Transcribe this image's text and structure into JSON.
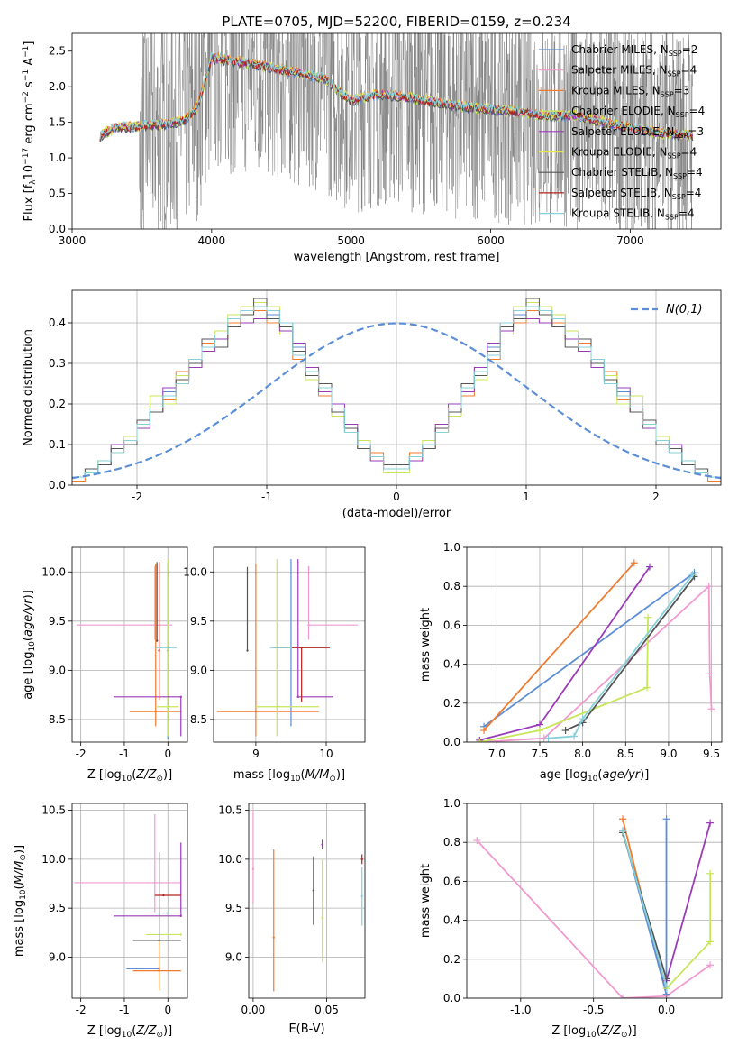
{
  "figure": {
    "title": "PLATE=0705, MJD=52200, FIBERID=0159, z=0.234"
  },
  "series_styles": [
    {
      "name": "Chabrier MILES",
      "nssp": "2",
      "color": "#5b8ed6"
    },
    {
      "name": "Salpeter MILES",
      "nssp": "4",
      "color": "#f19ad0"
    },
    {
      "name": "Kroupa MILES",
      "nssp": "3",
      "color": "#f07b2e"
    },
    {
      "name": "Chabrier ELODIE",
      "nssp": "4",
      "color": "#c8e65a"
    },
    {
      "name": "Salpeter ELODIE",
      "nssp": "3",
      "color": "#9a3bb8"
    },
    {
      "name": "Kroupa ELODIE",
      "nssp": "4",
      "color": "#e6e64a"
    },
    {
      "name": "Chabrier STELIB",
      "nssp": "4",
      "color": "#555555"
    },
    {
      "name": "Salpeter STELIB",
      "nssp": "4",
      "color": "#b5231e"
    },
    {
      "name": "Kroupa STELIB",
      "nssp": "4",
      "color": "#86d1d8"
    }
  ],
  "chart_data": [
    {
      "id": "spectrum",
      "type": "line",
      "title": "PLATE=0705, MJD=52200, FIBERID=0159, z=0.234",
      "xlabel": "wavelength [Angstrom, rest frame]",
      "ylabel": "Flux [f_λ 10^-17 erg cm^-2 s^-1 A^-1]",
      "xlim": [
        3000,
        7650
      ],
      "ylim": [
        0,
        2.75
      ],
      "xticks": [
        3000,
        4000,
        5000,
        6000,
        7000
      ],
      "yticks": [
        0.0,
        0.5,
        1.0,
        1.5,
        2.0,
        2.5
      ],
      "legend_position": "right",
      "data_color": "#808080",
      "data_x_range": [
        3200,
        7450
      ],
      "model_shape": {
        "x": [
          3200,
          3300,
          3500,
          3700,
          3800,
          3900,
          4000,
          4100,
          4200,
          4400,
          4600,
          4800,
          5000,
          5200,
          5400,
          5600,
          5800,
          6000,
          6200,
          6400,
          6600,
          6800,
          7000,
          7200,
          7400
        ],
        "y": [
          1.3,
          1.42,
          1.45,
          1.48,
          1.52,
          1.72,
          2.4,
          2.38,
          2.35,
          2.28,
          2.2,
          2.12,
          1.8,
          1.9,
          1.85,
          1.78,
          1.72,
          1.68,
          1.65,
          1.58,
          1.6,
          1.5,
          1.42,
          1.35,
          1.32
        ]
      }
    },
    {
      "id": "residuals",
      "type": "step",
      "xlabel": "(data-model)/error",
      "ylabel": "Normed distribution",
      "xlim": [
        -2.5,
        2.5
      ],
      "ylim": [
        0,
        0.48
      ],
      "xticks": [
        -2,
        -1,
        0,
        1,
        2
      ],
      "yticks": [
        0.0,
        0.1,
        0.2,
        0.3,
        0.4
      ],
      "legend": "N(0,1)",
      "legend_position": "top-right",
      "reference_curve": "standard normal",
      "bin_width": 0.1,
      "series": [
        {
          "name": "Chabrier MILES",
          "values": [
            0.02,
            0.04,
            0.05,
            0.09,
            0.11,
            0.15,
            0.19,
            0.23,
            0.26,
            0.3,
            0.34,
            0.37,
            0.4,
            0.43,
            0.44,
            0.42,
            0.4,
            0.34,
            0.28,
            0.24,
            0.19,
            0.14,
            0.1,
            0.07,
            0.05
          ]
        },
        {
          "name": "Kroupa MILES",
          "values": [
            0.01,
            0.03,
            0.06,
            0.08,
            0.1,
            0.16,
            0.18,
            0.21,
            0.28,
            0.31,
            0.35,
            0.36,
            0.4,
            0.42,
            0.43,
            0.4,
            0.39,
            0.31,
            0.29,
            0.22,
            0.18,
            0.13,
            0.09,
            0.08,
            0.04
          ]
        },
        {
          "name": "Chabrier ELODIE",
          "values": [
            0.02,
            0.04,
            0.06,
            0.09,
            0.12,
            0.14,
            0.22,
            0.2,
            0.27,
            0.31,
            0.36,
            0.38,
            0.42,
            0.44,
            0.45,
            0.44,
            0.37,
            0.33,
            0.26,
            0.23,
            0.17,
            0.13,
            0.11,
            0.06,
            0.03
          ]
        },
        {
          "name": "Salpeter ELODIE",
          "values": [
            0.02,
            0.03,
            0.05,
            0.1,
            0.11,
            0.14,
            0.18,
            0.24,
            0.26,
            0.29,
            0.33,
            0.36,
            0.39,
            0.4,
            0.41,
            0.43,
            0.38,
            0.35,
            0.29,
            0.23,
            0.2,
            0.15,
            0.1,
            0.06,
            0.04
          ]
        },
        {
          "name": "Chabrier STELIB",
          "values": [
            0.02,
            0.04,
            0.05,
            0.09,
            0.1,
            0.16,
            0.18,
            0.22,
            0.26,
            0.3,
            0.36,
            0.34,
            0.39,
            0.42,
            0.46,
            0.41,
            0.39,
            0.33,
            0.27,
            0.25,
            0.18,
            0.14,
            0.09,
            0.07,
            0.05
          ]
        },
        {
          "name": "Kroupa STELIB",
          "values": [
            0.02,
            0.03,
            0.06,
            0.08,
            0.11,
            0.15,
            0.19,
            0.22,
            0.25,
            0.31,
            0.34,
            0.37,
            0.41,
            0.43,
            0.44,
            0.43,
            0.4,
            0.32,
            0.28,
            0.24,
            0.19,
            0.13,
            0.1,
            0.07,
            0.04
          ]
        }
      ]
    },
    {
      "id": "age-vs-Z",
      "type": "errorbar",
      "xlabel": "Z [log10(Z/Z⊙)]",
      "ylabel": "age  [log10(age/yr)]",
      "xlim": [
        -2.2,
        0.45
      ],
      "ylim": [
        8.27,
        10.25
      ],
      "xticks": [
        -2,
        -1,
        0
      ],
      "yticks": [
        8.5,
        9.0,
        9.5,
        10.0
      ],
      "points": [
        {
          "series": "Chabrier MILES",
          "x": 0.0,
          "y": 9.2,
          "xerr": [
            0.0,
            0.0
          ],
          "yerr": [
            0.9,
            0.9
          ]
        },
        {
          "series": "Salpeter MILES",
          "x": -0.3,
          "y": 9.46,
          "xerr": [
            1.8,
            0.4
          ],
          "yerr": [
            0.15,
            0.6
          ]
        },
        {
          "series": "Kroupa MILES",
          "x": -0.28,
          "y": 8.58,
          "xerr": [
            0.6,
            0.6
          ],
          "yerr": [
            0.15,
            1.5
          ]
        },
        {
          "series": "Chabrier ELODIE",
          "x": 0.0,
          "y": 8.63,
          "xerr": [
            0.25,
            0.25
          ],
          "yerr": [
            0.3,
            1.5
          ]
        },
        {
          "series": "Salpeter ELODIE",
          "x": 0.3,
          "y": 8.73,
          "xerr": [
            1.55,
            0.0
          ],
          "yerr": [
            0.4,
            0.0
          ]
        },
        {
          "series": "Chabrier STELIB",
          "x": -0.25,
          "y": 9.3,
          "xerr": [
            0.0,
            0.0
          ],
          "yerr": [
            0.0,
            0.8
          ]
        },
        {
          "series": "Salpeter STELIB",
          "x": -0.2,
          "y": 9.2,
          "xerr": [
            0.0,
            0.0
          ],
          "yerr": [
            0.5,
            0.9
          ]
        },
        {
          "series": "Kroupa STELIB",
          "x": 0.0,
          "y": 9.23,
          "xerr": [
            0.3,
            0.2
          ],
          "yerr": [
            0.0,
            0.0
          ]
        }
      ]
    },
    {
      "id": "age-vs-mass",
      "type": "errorbar",
      "xlabel": "mass [log10(M/M⊙)]",
      "ylabel": "",
      "xlim": [
        8.4,
        10.55
      ],
      "ylim": [
        8.27,
        10.25
      ],
      "xticks": [
        9,
        10
      ],
      "yticks": [
        8.5,
        9.0,
        9.5,
        10.0
      ],
      "points": [
        {
          "series": "Chabrier MILES",
          "x": 9.5,
          "y": 9.23,
          "xerr": [
            0.0,
            0.0
          ],
          "yerr": [
            0.8,
            0.9
          ]
        },
        {
          "series": "Salpeter MILES",
          "x": 9.75,
          "y": 9.46,
          "xerr": [
            0.0,
            0.7
          ],
          "yerr": [
            0.15,
            0.6
          ]
        },
        {
          "series": "Kroupa MILES",
          "x": 9.0,
          "y": 8.58,
          "xerr": [
            0.55,
            0.9
          ],
          "yerr": [
            0.25,
            1.5
          ]
        },
        {
          "series": "Chabrier ELODIE",
          "x": 9.3,
          "y": 8.63,
          "xerr": [
            0.3,
            0.6
          ],
          "yerr": [
            0.3,
            1.5
          ]
        },
        {
          "series": "Salpeter ELODIE",
          "x": 9.6,
          "y": 8.73,
          "xerr": [
            0.0,
            0.5
          ],
          "yerr": [
            0.0,
            1.4
          ]
        },
        {
          "series": "Chabrier STELIB",
          "x": 8.88,
          "y": 9.2,
          "xerr": [
            0.0,
            0.0
          ],
          "yerr": [
            0.0,
            0.85
          ]
        },
        {
          "series": "Salpeter STELIB",
          "x": 9.65,
          "y": 9.23,
          "xerr": [
            0.4,
            0.4
          ],
          "yerr": [
            0.55,
            0.0
          ]
        },
        {
          "series": "Kroupa STELIB",
          "x": 9.5,
          "y": 9.23,
          "xerr": [
            0.3,
            0.0
          ],
          "yerr": [
            0.0,
            0.0
          ]
        }
      ]
    },
    {
      "id": "mass-weight-vs-age",
      "type": "line",
      "xlabel": "age  [log10(age/yr)]",
      "ylabel": "mass weight",
      "xlim": [
        6.65,
        9.62
      ],
      "ylim": [
        0,
        1.0
      ],
      "xticks": [
        7.0,
        7.5,
        8.0,
        8.5,
        9.0,
        9.5
      ],
      "yticks": [
        0.0,
        0.2,
        0.4,
        0.6,
        0.8,
        1.0
      ],
      "series": [
        {
          "name": "Chabrier MILES",
          "x": [
            6.85,
            9.3
          ],
          "y": [
            0.08,
            0.87
          ]
        },
        {
          "name": "Kroupa MILES",
          "x": [
            6.85,
            8.6
          ],
          "y": [
            0.06,
            0.92
          ]
        },
        {
          "name": "Salpeter MILES",
          "x": [
            6.8,
            7.55,
            9.47,
            9.48,
            9.5
          ],
          "y": [
            0.0,
            0.02,
            0.8,
            0.35,
            0.17
          ]
        },
        {
          "name": "Salpeter ELODIE",
          "x": [
            6.8,
            7.5,
            8.78
          ],
          "y": [
            0.01,
            0.09,
            0.9
          ]
        },
        {
          "name": "Chabrier ELODIE",
          "x": [
            6.8,
            7.5,
            8.75,
            8.76
          ],
          "y": [
            0.0,
            0.06,
            0.28,
            0.64
          ]
        },
        {
          "name": "Chabrier STELIB",
          "x": [
            7.8,
            8.0,
            9.3
          ],
          "y": [
            0.06,
            0.1,
            0.85
          ]
        },
        {
          "name": "Kroupa STELIB",
          "x": [
            7.6,
            7.9,
            8.0,
            9.28
          ],
          "y": [
            0.02,
            0.03,
            0.12,
            0.86
          ]
        }
      ]
    },
    {
      "id": "mass-vs-Z",
      "type": "errorbar",
      "xlabel": "Z [log10(Z/Z⊙)]",
      "ylabel": "mass [log10(M/M⊙)]",
      "xlim": [
        -2.2,
        0.45
      ],
      "ylim": [
        8.58,
        10.57
      ],
      "xticks": [
        -2,
        -1,
        0
      ],
      "yticks": [
        9.0,
        9.5,
        10.0,
        10.5
      ],
      "points": [
        {
          "series": "Chabrier MILES",
          "x": -0.2,
          "y": 8.88,
          "xerr": [
            0.75,
            0.0
          ],
          "yerr": [
            0.0,
            0.0
          ]
        },
        {
          "series": "Salpeter MILES",
          "x": -0.3,
          "y": 9.76,
          "xerr": [
            1.85,
            0.6
          ],
          "yerr": [
            0.3,
            0.7
          ]
        },
        {
          "series": "Kroupa MILES",
          "x": -0.2,
          "y": 8.86,
          "xerr": [
            0.6,
            0.5
          ],
          "yerr": [
            0.2,
            1.2
          ]
        },
        {
          "series": "Chabrier ELODIE",
          "x": 0.3,
          "y": 9.23,
          "xerr": [
            0.8,
            0.0
          ],
          "yerr": [
            0.0,
            0.0
          ]
        },
        {
          "series": "Salpeter ELODIE",
          "x": 0.3,
          "y": 9.42,
          "xerr": [
            1.55,
            0.0
          ],
          "yerr": [
            0.0,
            0.75
          ]
        },
        {
          "series": "Chabrier STELIB",
          "x": -0.2,
          "y": 9.17,
          "xerr": [
            0.6,
            0.5
          ],
          "yerr": [
            0.0,
            0.9
          ]
        },
        {
          "series": "Salpeter STELIB",
          "x": -0.1,
          "y": 9.63,
          "xerr": [
            0.2,
            0.4
          ],
          "yerr": [
            0.0,
            0.0
          ]
        },
        {
          "series": "Kroupa STELIB",
          "x": 0.0,
          "y": 9.45,
          "xerr": [
            0.3,
            0.3
          ],
          "yerr": [
            0.0,
            0.0
          ]
        }
      ]
    },
    {
      "id": "mass-vs-ebv",
      "type": "errorbar",
      "xlabel": "E(B-V)",
      "ylabel": "",
      "xlim": [
        -0.003,
        0.076
      ],
      "ylim": [
        8.58,
        10.57
      ],
      "xticks": [
        0.0,
        0.05
      ],
      "yticks": [
        9.0,
        9.5,
        10.0,
        10.5
      ],
      "points": [
        {
          "series": "Salpeter MILES",
          "x": 0.0,
          "y": 9.9,
          "xerr": [
            0.0,
            0.0
          ],
          "yerr": [
            0.35,
            0.6
          ]
        },
        {
          "series": "Kroupa MILES",
          "x": 0.014,
          "y": 9.2,
          "xerr": [
            0.0,
            0.0
          ],
          "yerr": [
            0.55,
            0.9
          ]
        },
        {
          "series": "Chabrier STELIB",
          "x": 0.041,
          "y": 9.68,
          "xerr": [
            0.0,
            0.0
          ],
          "yerr": [
            0.35,
            0.35
          ]
        },
        {
          "series": "Chabrier ELODIE",
          "x": 0.047,
          "y": 9.4,
          "xerr": [
            0.0,
            0.0
          ],
          "yerr": [
            0.45,
            0.6
          ]
        },
        {
          "series": "Salpeter ELODIE",
          "x": 0.047,
          "y": 10.15,
          "xerr": [
            0.0,
            0.0
          ],
          "yerr": [
            0.05,
            0.05
          ]
        },
        {
          "series": "Salpeter STELIB",
          "x": 0.074,
          "y": 10.0,
          "xerr": [
            0.0,
            0.0
          ],
          "yerr": [
            0.05,
            0.05
          ]
        },
        {
          "series": "Kroupa STELIB",
          "x": 0.074,
          "y": 9.62,
          "xerr": [
            0.0,
            0.0
          ],
          "yerr": [
            0.3,
            0.3
          ]
        }
      ]
    },
    {
      "id": "mass-weight-vs-Z",
      "type": "line",
      "xlabel": "Z [log10(Z/Z⊙)]",
      "ylabel": "mass weight",
      "xlim": [
        -1.37,
        0.38
      ],
      "ylim": [
        0,
        1.0
      ],
      "xticks": [
        -1.0,
        -0.5,
        0.0
      ],
      "yticks": [
        0.0,
        0.2,
        0.4,
        0.6,
        0.8,
        1.0
      ],
      "series": [
        {
          "name": "Salpeter MILES",
          "x": [
            -1.3,
            -0.3,
            0.0,
            0.3
          ],
          "y": [
            0.81,
            0.0,
            0.01,
            0.17
          ]
        },
        {
          "name": "Kroupa MILES",
          "x": [
            -0.3,
            0.0
          ],
          "y": [
            0.92,
            0.02
          ]
        },
        {
          "name": "Chabrier MILES",
          "x": [
            -0.3,
            0.0,
            0.0
          ],
          "y": [
            0.86,
            0.02,
            0.92
          ]
        },
        {
          "name": "Salpeter ELODIE",
          "x": [
            0.0,
            0.3
          ],
          "y": [
            0.09,
            0.9
          ]
        },
        {
          "name": "Chabrier ELODIE",
          "x": [
            0.0,
            0.3,
            0.3
          ],
          "y": [
            0.05,
            0.29,
            0.64
          ]
        },
        {
          "name": "Chabrier STELIB",
          "x": [
            -0.3,
            0.0
          ],
          "y": [
            0.85,
            0.1
          ]
        },
        {
          "name": "Kroupa STELIB",
          "x": [
            -0.3,
            0.0
          ],
          "y": [
            0.86,
            0.06
          ]
        }
      ]
    }
  ]
}
